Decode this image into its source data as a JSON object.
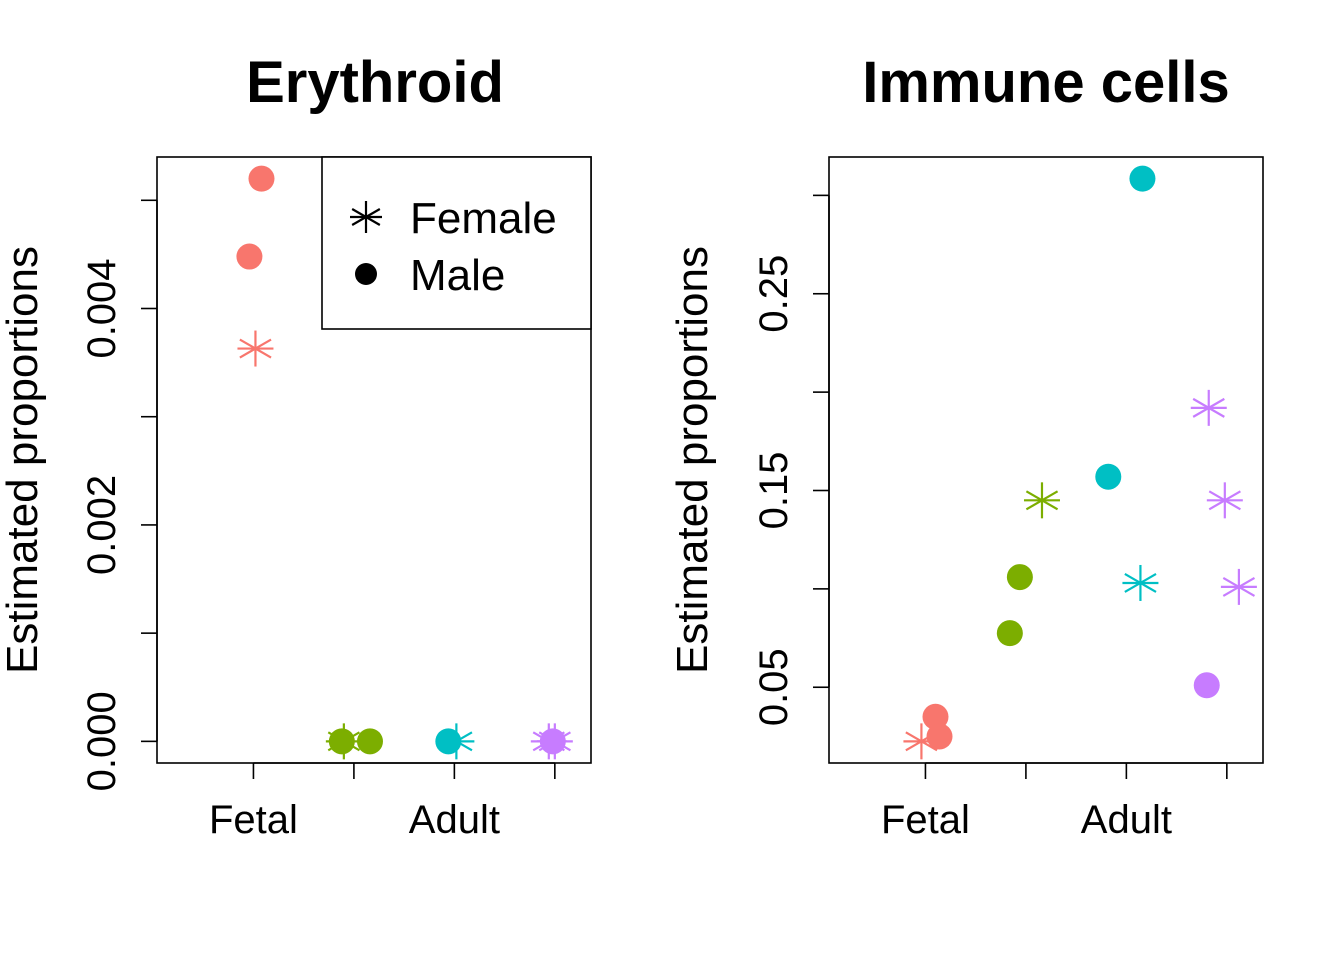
{
  "chart_data": [
    {
      "type": "scatter",
      "title": "Erythroid",
      "ylabel": "Estimated proportions",
      "xlabel": "",
      "group_labels": [
        "Fetal",
        "",
        "Adult",
        ""
      ],
      "y_ticks": [
        0,
        0.001,
        0.002,
        0.003,
        0.004,
        0.005
      ],
      "y_tick_labels": [
        "0.000",
        "",
        "0.002",
        "",
        "0.004",
        ""
      ],
      "ylim": [
        -0.0002,
        0.0054
      ],
      "xlim": [
        0.52,
        2.68
      ],
      "legend_position": "top-right",
      "legend": [
        {
          "label": "Female",
          "shape": "star"
        },
        {
          "label": "Male",
          "shape": "circle"
        }
      ],
      "points": [
        {
          "x": 1.04,
          "y": 0.0052,
          "shape": "circle",
          "color": "#F8766D"
        },
        {
          "x": 0.98,
          "y": 0.00448,
          "shape": "circle",
          "color": "#F8766D"
        },
        {
          "x": 1.01,
          "y": 0.00363,
          "shape": "star",
          "color": "#F8766D"
        },
        {
          "x": 1.45,
          "y": 0.0,
          "shape": "star",
          "color": "#7CAE00"
        },
        {
          "x": 1.44,
          "y": 0.0,
          "shape": "circle",
          "color": "#7CAE00"
        },
        {
          "x": 1.58,
          "y": 0.0,
          "shape": "circle",
          "color": "#7CAE00"
        },
        {
          "x": 2.01,
          "y": 0.0,
          "shape": "star",
          "color": "#00BFC4"
        },
        {
          "x": 1.97,
          "y": 0.0,
          "shape": "circle",
          "color": "#00BFC4"
        },
        {
          "x": 2.5,
          "y": 0.0,
          "shape": "star",
          "color": "#C77CFF"
        },
        {
          "x": 2.47,
          "y": 0.0,
          "shape": "star",
          "color": "#C77CFF"
        },
        {
          "x": 2.49,
          "y": 0.0,
          "shape": "circle",
          "color": "#C77CFF"
        }
      ]
    },
    {
      "type": "scatter",
      "title": "Immune cells",
      "ylabel": "Estimated proportions",
      "xlabel": "",
      "group_labels": [
        "Fetal",
        "",
        "Adult",
        ""
      ],
      "y_ticks": [
        0.05,
        0.1,
        0.15,
        0.2,
        0.25,
        0.3
      ],
      "y_tick_labels": [
        "0.05",
        "",
        "0.15",
        "",
        "0.25",
        ""
      ],
      "ylim": [
        0.0115,
        0.3195
      ],
      "xlim": [
        0.52,
        2.68
      ],
      "points": [
        {
          "x": 0.98,
          "y": 0.0225,
          "shape": "star",
          "color": "#F8766D"
        },
        {
          "x": 1.05,
          "y": 0.035,
          "shape": "circle",
          "color": "#F8766D"
        },
        {
          "x": 1.07,
          "y": 0.025,
          "shape": "circle",
          "color": "#F8766D"
        },
        {
          "x": 1.42,
          "y": 0.0775,
          "shape": "circle",
          "color": "#7CAE00"
        },
        {
          "x": 1.47,
          "y": 0.106,
          "shape": "circle",
          "color": "#7CAE00"
        },
        {
          "x": 1.58,
          "y": 0.145,
          "shape": "star",
          "color": "#7CAE00"
        },
        {
          "x": 1.91,
          "y": 0.157,
          "shape": "circle",
          "color": "#00BFC4"
        },
        {
          "x": 2.08,
          "y": 0.3085,
          "shape": "circle",
          "color": "#00BFC4"
        },
        {
          "x": 2.07,
          "y": 0.103,
          "shape": "star",
          "color": "#00BFC4"
        },
        {
          "x": 2.41,
          "y": 0.192,
          "shape": "star",
          "color": "#C77CFF"
        },
        {
          "x": 2.49,
          "y": 0.145,
          "shape": "star",
          "color": "#C77CFF"
        },
        {
          "x": 2.56,
          "y": 0.101,
          "shape": "star",
          "color": "#C77CFF"
        },
        {
          "x": 2.4,
          "y": 0.051,
          "shape": "circle",
          "color": "#C77CFF"
        }
      ]
    }
  ]
}
